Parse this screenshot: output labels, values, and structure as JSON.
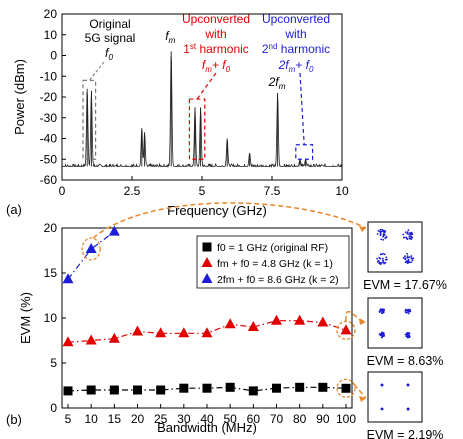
{
  "chart_data": [
    {
      "panel_label": "(a)",
      "type": "line",
      "xlabel": "Frequency (GHz)",
      "ylabel": "Power (dBm)",
      "xlim": [
        0,
        10
      ],
      "ylim": [
        -60,
        20
      ],
      "xticks": [
        "0",
        "2.5",
        "5",
        "7.5",
        "10"
      ],
      "yticks": [
        "20",
        "10",
        "0",
        "-10",
        "-20",
        "-30",
        "-40",
        "-50",
        "-60"
      ],
      "noise_floor_dbm": -53.5,
      "series": [
        {
          "peaks": [
            {
              "x": 0.9,
              "y": -16
            },
            {
              "x": 1.05,
              "y": -17
            },
            {
              "x": 2.85,
              "y": -35
            },
            {
              "x": 2.95,
              "y": -37
            },
            {
              "x": 3.9,
              "y": 2
            },
            {
              "x": 4.75,
              "y": -25
            },
            {
              "x": 4.95,
              "y": -25
            },
            {
              "x": 5.9,
              "y": -40
            },
            {
              "x": 6.7,
              "y": -47
            },
            {
              "x": 7.7,
              "y": -18
            },
            {
              "x": 8.5,
              "y": -50
            },
            {
              "x": 8.7,
              "y": -50
            }
          ]
        }
      ],
      "annotations": [
        {
          "id": "orig",
          "lines": [
            "Original",
            "5G signal",
            "f0"
          ],
          "color": "#000000",
          "box_x": [
            0.75,
            1.2
          ],
          "box_y": [
            -50,
            -12
          ]
        },
        {
          "id": "fm",
          "text": "fm",
          "color": "#000000"
        },
        {
          "id": "h1",
          "lines": [
            "Upconverted",
            "with",
            "1st harmonic",
            "fm + f0"
          ],
          "color": "#e00000",
          "box_x": [
            4.55,
            5.1
          ],
          "box_y": [
            -50,
            -21
          ]
        },
        {
          "id": "2fm",
          "text": "2fm",
          "color": "#000000"
        },
        {
          "id": "h2",
          "lines": [
            "Upconverted",
            "with",
            "2nd harmonic",
            "2fm + f0"
          ],
          "color": "#1c1cd6",
          "box_x": [
            8.35,
            8.95
          ],
          "box_y": [
            -50,
            -43
          ]
        }
      ]
    },
    {
      "panel_label": "(b)",
      "type": "line",
      "xlabel": "Bandwidth (MHz)",
      "ylabel": "EVM (%)",
      "xlim": [
        5,
        100
      ],
      "ylim": [
        0,
        20
      ],
      "categories": [
        "5",
        "10",
        "15",
        "20",
        "25",
        "30",
        "40",
        "50",
        "60",
        "70",
        "80",
        "90",
        "100"
      ],
      "yticks": [
        "0",
        "5",
        "10",
        "15",
        "20"
      ],
      "series": [
        {
          "name": "f0 = 1 GHz (original RF)",
          "color": "#000000",
          "marker": "square",
          "x": [
            5,
            10,
            15,
            20,
            25,
            30,
            40,
            50,
            60,
            70,
            80,
            90,
            100
          ],
          "values": [
            1.9,
            2.0,
            2.0,
            2.0,
            2.0,
            2.2,
            2.2,
            2.3,
            1.9,
            2.2,
            2.3,
            2.3,
            2.19
          ]
        },
        {
          "name": "fm + f0 = 4.8 GHz (k = 1)",
          "color": "#e00000",
          "marker": "triangle",
          "x": [
            5,
            10,
            15,
            20,
            25,
            30,
            40,
            50,
            60,
            70,
            80,
            90,
            100
          ],
          "values": [
            7.3,
            7.5,
            7.7,
            8.5,
            8.3,
            8.3,
            8.3,
            9.3,
            9.0,
            9.7,
            9.7,
            9.5,
            8.63
          ]
        },
        {
          "name": "2fm + f0 = 8.6 GHz (k = 2)",
          "color": "#1c1cd6",
          "marker": "triangle",
          "x": [
            5,
            10,
            15
          ],
          "values": [
            14.3,
            17.67,
            19.6
          ]
        }
      ],
      "legend_position": "top-right",
      "constellations": [
        {
          "label": "EVM = 17.67%",
          "color": "#1c1cd6",
          "spread": "wide"
        },
        {
          "label": "EVM = 8.63%",
          "color": "#1c1cd6",
          "spread": "medium"
        },
        {
          "label": "EVM = 2.19%",
          "color": "#1c1cd6",
          "spread": "tight"
        }
      ],
      "callout_color": "#e8862a"
    }
  ]
}
